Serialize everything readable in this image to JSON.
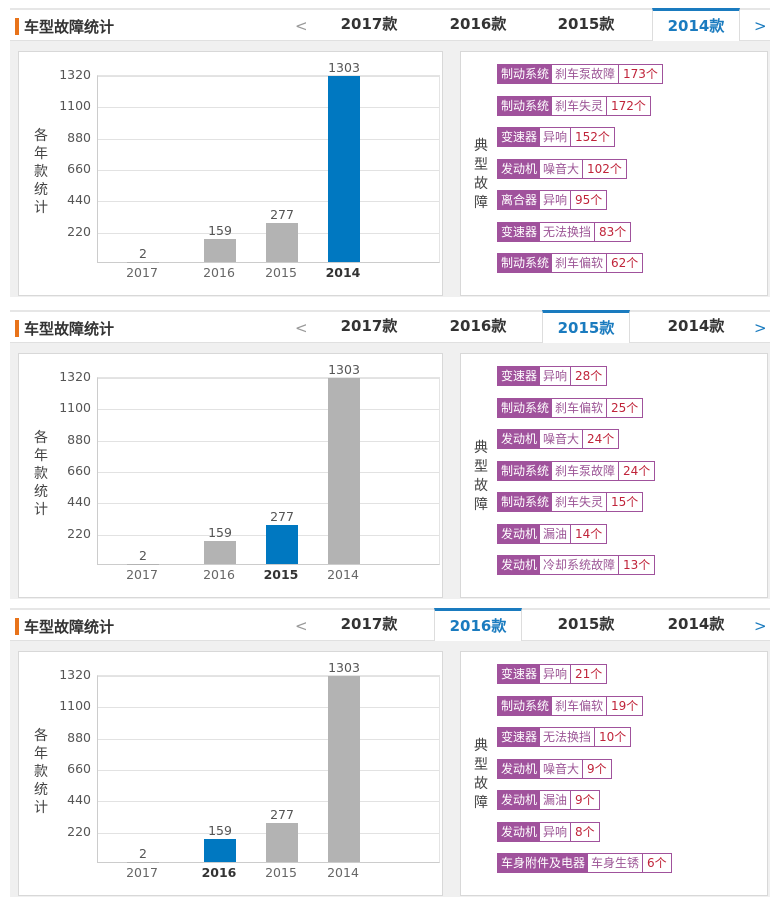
{
  "panels": [
    {
      "title": "车型故障统计",
      "prev": "<",
      "next": ">",
      "tabs": [
        "2017款",
        "2016款",
        "2015款",
        "2014款"
      ],
      "active_tab": 3,
      "chart": {
        "y_title": "各年款统计",
        "highlight": "2014"
      },
      "faults_title": "典型故障",
      "faults": [
        {
          "category": "制动系统",
          "symptom": "刹车泵故障",
          "count": "173个"
        },
        {
          "category": "制动系统",
          "symptom": "刹车失灵",
          "count": "172个"
        },
        {
          "category": "变速器",
          "symptom": "异响",
          "count": "152个"
        },
        {
          "category": "发动机",
          "symptom": "噪音大",
          "count": "102个"
        },
        {
          "category": "离合器",
          "symptom": "异响",
          "count": "95个"
        },
        {
          "category": "变速器",
          "symptom": "无法换挡",
          "count": "83个"
        },
        {
          "category": "制动系统",
          "symptom": "刹车偏软",
          "count": "62个"
        }
      ]
    },
    {
      "title": "车型故障统计",
      "prev": "<",
      "next": ">",
      "tabs": [
        "2017款",
        "2016款",
        "2015款",
        "2014款"
      ],
      "active_tab": 2,
      "chart": {
        "y_title": "各年款统计",
        "highlight": "2015"
      },
      "faults_title": "典型故障",
      "faults": [
        {
          "category": "变速器",
          "symptom": "异响",
          "count": "28个"
        },
        {
          "category": "制动系统",
          "symptom": "刹车偏软",
          "count": "25个"
        },
        {
          "category": "发动机",
          "symptom": "噪音大",
          "count": "24个"
        },
        {
          "category": "制动系统",
          "symptom": "刹车泵故障",
          "count": "24个"
        },
        {
          "category": "制动系统",
          "symptom": "刹车失灵",
          "count": "15个"
        },
        {
          "category": "发动机",
          "symptom": "漏油",
          "count": "14个"
        },
        {
          "category": "发动机",
          "symptom": "冷却系统故障",
          "count": "13个"
        }
      ]
    },
    {
      "title": "车型故障统计",
      "prev": "<",
      "next": ">",
      "tabs": [
        "2017款",
        "2016款",
        "2015款",
        "2014款"
      ],
      "active_tab": 1,
      "chart": {
        "y_title": "各年款统计",
        "highlight": "2016"
      },
      "faults_title": "典型故障",
      "faults": [
        {
          "category": "变速器",
          "symptom": "异响",
          "count": "21个"
        },
        {
          "category": "制动系统",
          "symptom": "刹车偏软",
          "count": "19个"
        },
        {
          "category": "变速器",
          "symptom": "无法换挡",
          "count": "10个"
        },
        {
          "category": "发动机",
          "symptom": "噪音大",
          "count": "9个"
        },
        {
          "category": "发动机",
          "symptom": "漏油",
          "count": "9个"
        },
        {
          "category": "发动机",
          "symptom": "异响",
          "count": "8个"
        },
        {
          "category": "车身附件及电器",
          "symptom": "车身生锈",
          "count": "6个"
        }
      ]
    }
  ],
  "colors": {
    "accent_orange": "#e8731a",
    "tab_active_blue": "#1a7bbf",
    "bar_highlight": "#0078c1",
    "bar_default": "#b3b3b3",
    "fault_purple": "#a0529c",
    "fault_count_red": "#c0243a"
  },
  "chart_data": [
    {
      "type": "bar",
      "title": "",
      "categories": [
        "2017",
        "2016",
        "2015",
        "2014"
      ],
      "values": [
        2,
        159,
        277,
        1303
      ],
      "highlight": "2014",
      "xlabel": "",
      "ylabel": "各年款统计",
      "yticks": [
        220,
        440,
        660,
        880,
        1100,
        1320
      ],
      "ylim": [
        0,
        1320
      ],
      "grid": true,
      "legend": null
    },
    {
      "type": "bar",
      "title": "",
      "categories": [
        "2017",
        "2016",
        "2015",
        "2014"
      ],
      "values": [
        2,
        159,
        277,
        1303
      ],
      "highlight": "2015",
      "xlabel": "",
      "ylabel": "各年款统计",
      "yticks": [
        220,
        440,
        660,
        880,
        1100,
        1320
      ],
      "ylim": [
        0,
        1320
      ],
      "grid": true,
      "legend": null
    },
    {
      "type": "bar",
      "title": "",
      "categories": [
        "2017",
        "2016",
        "2015",
        "2014"
      ],
      "values": [
        2,
        159,
        277,
        1303
      ],
      "highlight": "2016",
      "xlabel": "",
      "ylabel": "各年款统计",
      "yticks": [
        220,
        440,
        660,
        880,
        1100,
        1320
      ],
      "ylim": [
        0,
        1320
      ],
      "grid": true,
      "legend": null
    }
  ]
}
